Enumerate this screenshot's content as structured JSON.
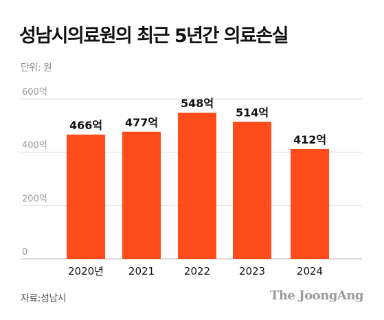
{
  "header": {
    "title": "성남시의료원의 최근 5년간 의료손실",
    "unit": "단위: 원"
  },
  "chart_data": {
    "type": "bar",
    "categories": [
      "2020년",
      "2021",
      "2022",
      "2023",
      "2024"
    ],
    "values": [
      466,
      477,
      548,
      514,
      412
    ],
    "data_labels": [
      "466억",
      "477억",
      "548억",
      "514억",
      "412억"
    ],
    "y_ticks": [
      {
        "value": 0,
        "label": "0"
      },
      {
        "value": 200,
        "label": "200억"
      },
      {
        "value": 400,
        "label": "400억"
      },
      {
        "value": 600,
        "label": "600억"
      }
    ],
    "ylim": [
      0,
      600
    ],
    "grid": true,
    "bar_color": "#ff4c1a",
    "grid_color": "#dddddd"
  },
  "footer": {
    "source": "자료:성남시",
    "brand": "The JoongAng"
  }
}
